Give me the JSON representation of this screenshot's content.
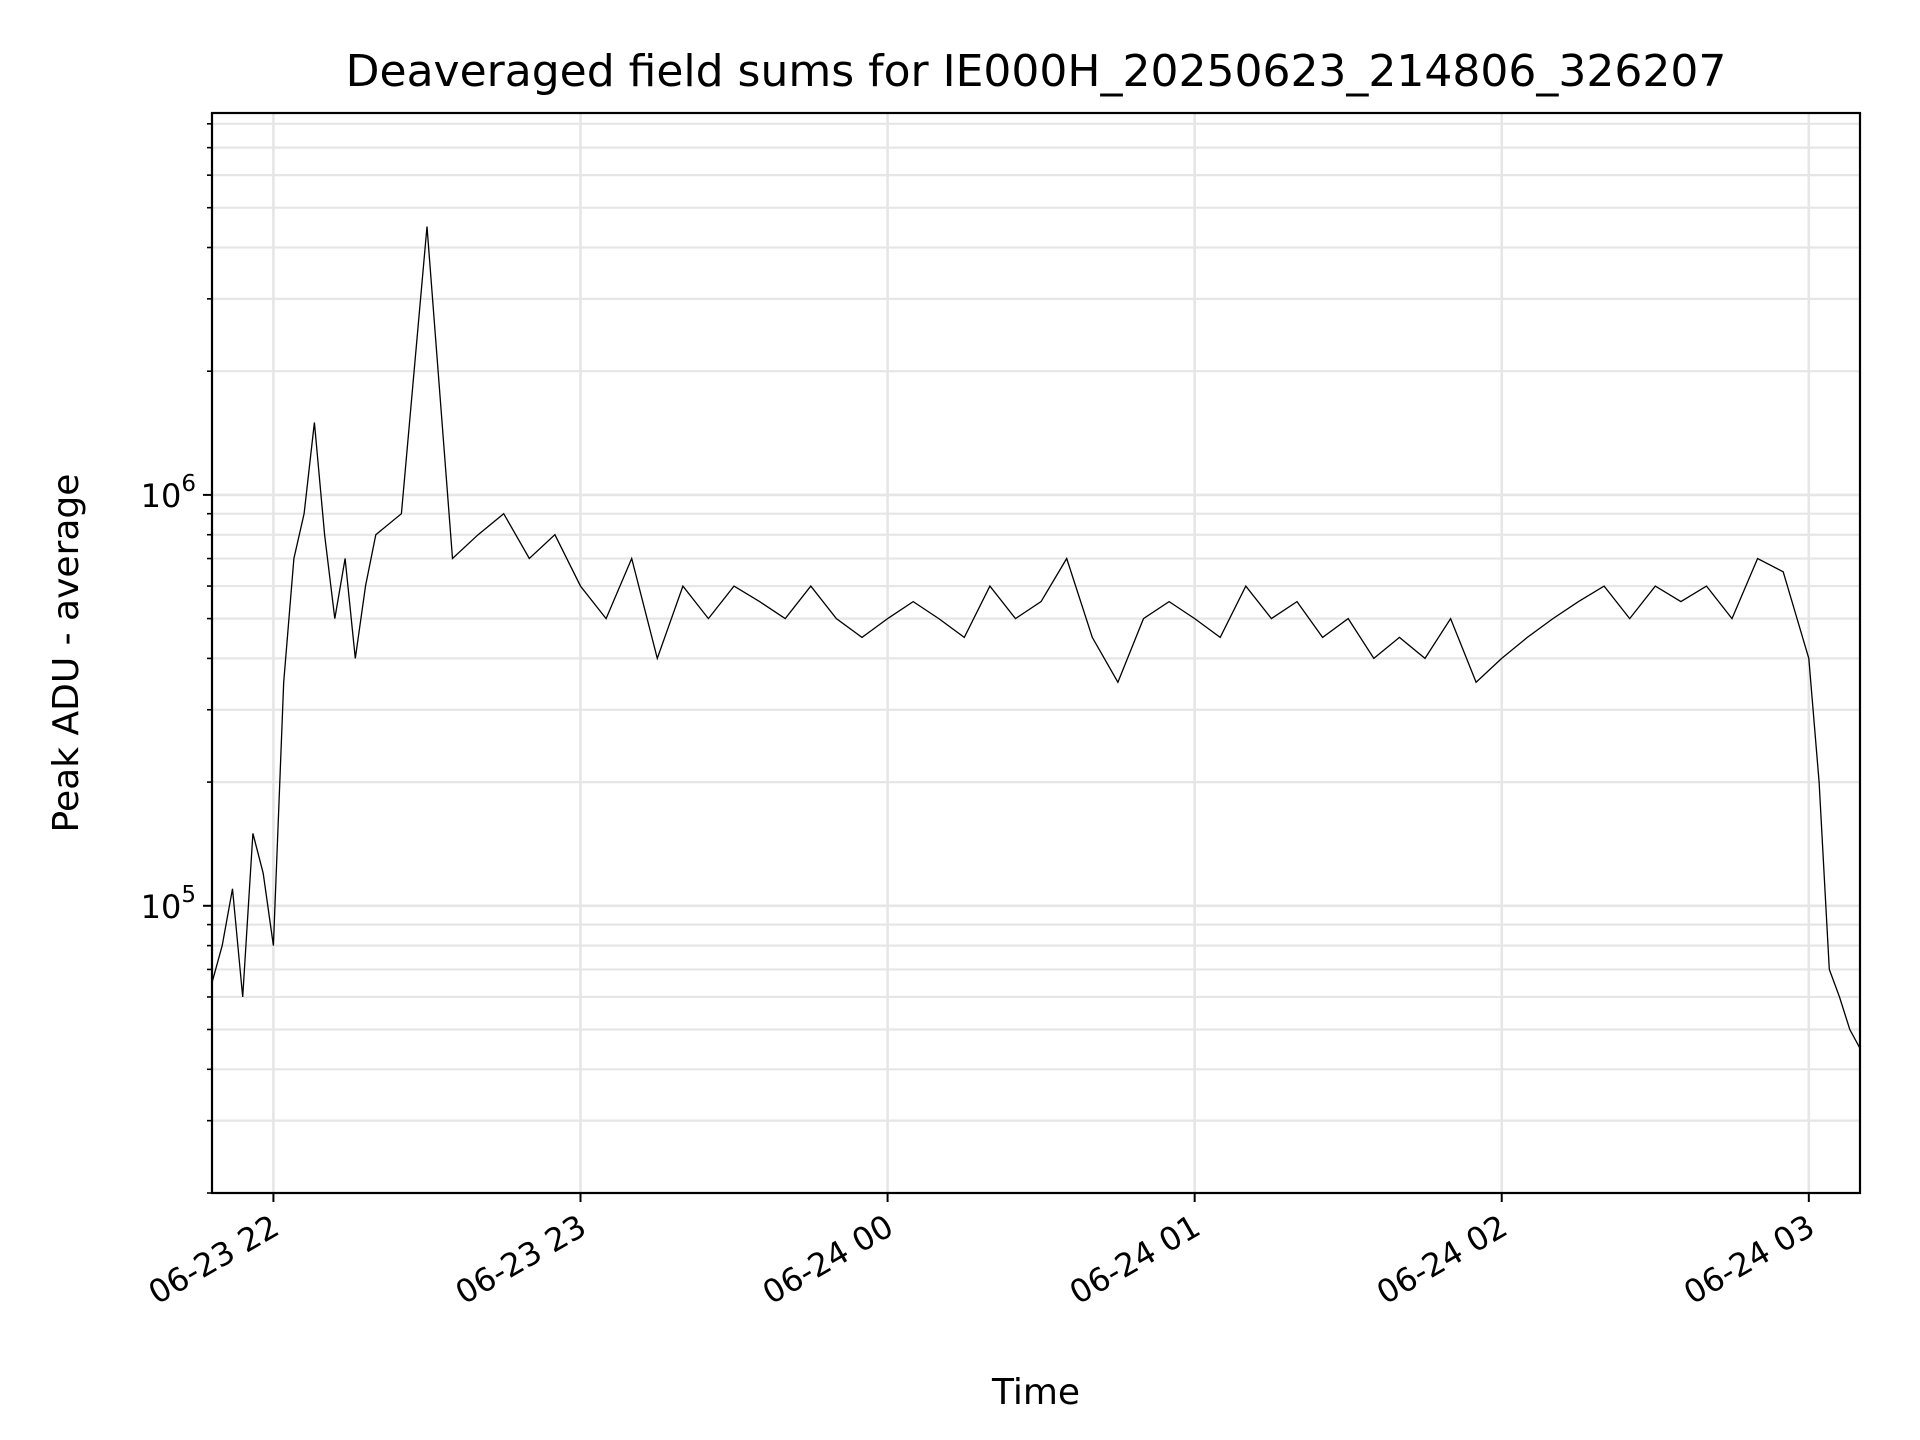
{
  "chart_data": {
    "type": "line",
    "title": "Deaveraged field sums for IE000H_20250623_214806_326207",
    "xlabel": "Time",
    "ylabel": "Peak ADU - average",
    "y_scale": "log",
    "ylim": [
      20000,
      8500000
    ],
    "xlim": [
      "2025-06-23 21:48",
      "2025-06-24 03:10"
    ],
    "x_ticks": [
      {
        "value": "2025-06-23 22:00",
        "label": "06-23 22"
      },
      {
        "value": "2025-06-23 23:00",
        "label": "06-23 23"
      },
      {
        "value": "2025-06-24 00:00",
        "label": "06-24 00"
      },
      {
        "value": "2025-06-24 01:00",
        "label": "06-24 01"
      },
      {
        "value": "2025-06-24 02:00",
        "label": "06-24 02"
      },
      {
        "value": "2025-06-24 03:00",
        "label": "06-24 03"
      }
    ],
    "y_ticks": [
      {
        "value": 100000,
        "base": "10",
        "exp": "5"
      },
      {
        "value": 1000000,
        "base": "10",
        "exp": "6"
      }
    ],
    "grid": true,
    "line_color": "#000000",
    "grid_color": "#e6e6e6",
    "series": [
      {
        "x": [
          "2025-06-23 21:48",
          "2025-06-23 21:50",
          "2025-06-23 21:52",
          "2025-06-23 21:54",
          "2025-06-23 21:56",
          "2025-06-23 21:58",
          "2025-06-23 22:00",
          "2025-06-23 22:02",
          "2025-06-23 22:04",
          "2025-06-23 22:06",
          "2025-06-23 22:08",
          "2025-06-23 22:10",
          "2025-06-23 22:12",
          "2025-06-23 22:14",
          "2025-06-23 22:16",
          "2025-06-23 22:18",
          "2025-06-23 22:20",
          "2025-06-23 22:25",
          "2025-06-23 22:30",
          "2025-06-23 22:35",
          "2025-06-23 22:40",
          "2025-06-23 22:45",
          "2025-06-23 22:50",
          "2025-06-23 22:55",
          "2025-06-23 23:00",
          "2025-06-23 23:05",
          "2025-06-23 23:10",
          "2025-06-23 23:15",
          "2025-06-23 23:20",
          "2025-06-23 23:25",
          "2025-06-23 23:30",
          "2025-06-23 23:35",
          "2025-06-23 23:40",
          "2025-06-23 23:45",
          "2025-06-23 23:50",
          "2025-06-23 23:55",
          "2025-06-24 00:00",
          "2025-06-24 00:05",
          "2025-06-24 00:10",
          "2025-06-24 00:15",
          "2025-06-24 00:20",
          "2025-06-24 00:25",
          "2025-06-24 00:30",
          "2025-06-24 00:35",
          "2025-06-24 00:40",
          "2025-06-24 00:45",
          "2025-06-24 00:50",
          "2025-06-24 00:55",
          "2025-06-24 01:00",
          "2025-06-24 01:05",
          "2025-06-24 01:10",
          "2025-06-24 01:15",
          "2025-06-24 01:20",
          "2025-06-24 01:25",
          "2025-06-24 01:30",
          "2025-06-24 01:35",
          "2025-06-24 01:40",
          "2025-06-24 01:45",
          "2025-06-24 01:50",
          "2025-06-24 01:55",
          "2025-06-24 02:00",
          "2025-06-24 02:05",
          "2025-06-24 02:10",
          "2025-06-24 02:15",
          "2025-06-24 02:20",
          "2025-06-24 02:25",
          "2025-06-24 02:30",
          "2025-06-24 02:35",
          "2025-06-24 02:40",
          "2025-06-24 02:45",
          "2025-06-24 02:50",
          "2025-06-24 02:55",
          "2025-06-24 03:00",
          "2025-06-24 03:02",
          "2025-06-24 03:04",
          "2025-06-24 03:06",
          "2025-06-24 03:08",
          "2025-06-24 03:10"
        ],
        "values": [
          65000,
          80000,
          110000,
          60000,
          150000,
          120000,
          80000,
          350000,
          700000,
          900000,
          1500000,
          800000,
          500000,
          700000,
          400000,
          600000,
          800000,
          900000,
          4500000,
          700000,
          800000,
          900000,
          700000,
          800000,
          600000,
          500000,
          700000,
          400000,
          600000,
          500000,
          600000,
          550000,
          500000,
          600000,
          500000,
          450000,
          500000,
          550000,
          500000,
          450000,
          600000,
          500000,
          550000,
          700000,
          450000,
          350000,
          500000,
          550000,
          500000,
          450000,
          600000,
          500000,
          550000,
          450000,
          500000,
          400000,
          450000,
          400000,
          500000,
          350000,
          400000,
          450000,
          500000,
          550000,
          600000,
          500000,
          600000,
          550000,
          600000,
          500000,
          700000,
          650000,
          400000,
          200000,
          70000,
          60000,
          50000,
          45000
        ]
      }
    ]
  }
}
